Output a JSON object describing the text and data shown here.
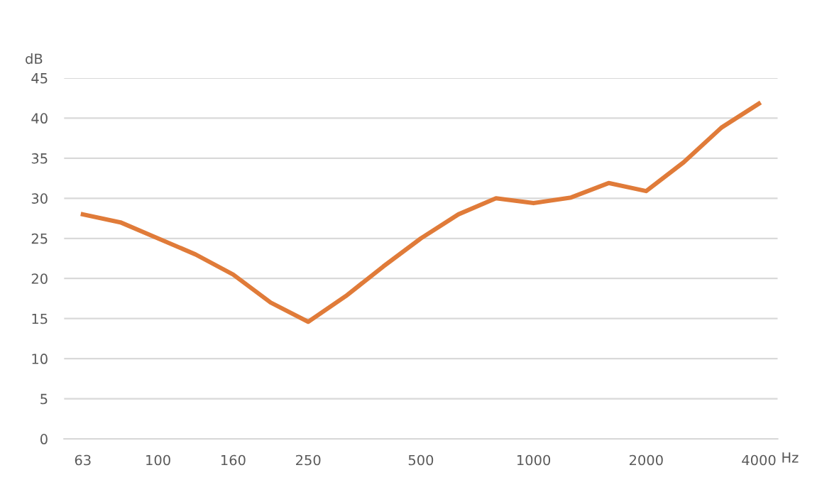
{
  "chart_data": {
    "type": "line",
    "xlabel": "Hz",
    "ylabel": "dB",
    "categories": [
      "63",
      null,
      "100",
      null,
      "160",
      null,
      "250",
      null,
      null,
      "500",
      null,
      null,
      "1000",
      null,
      null,
      "2000",
      null,
      null,
      "4000"
    ],
    "series": [
      {
        "color": "#e07b39",
        "values": [
          28,
          27,
          25,
          23,
          20.5,
          17,
          14.6,
          17.8,
          21.5,
          25,
          28,
          30,
          29.4,
          30.1,
          31.9,
          30.9,
          34.5,
          38.8,
          41.8
        ]
      }
    ],
    "ylim": [
      0,
      45
    ],
    "yticks": [
      0,
      5,
      10,
      15,
      20,
      25,
      30,
      35,
      40,
      45
    ],
    "grid": "y",
    "legend": false,
    "marker": "none",
    "line_style": "solid"
  }
}
